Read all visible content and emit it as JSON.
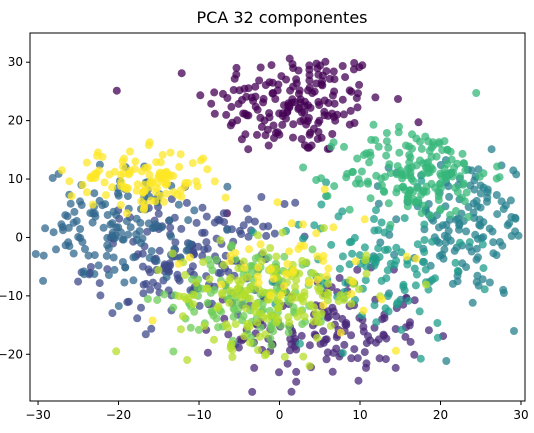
{
  "chart_data": {
    "type": "scatter",
    "title": "PCA 32 componentes",
    "xlabel": "",
    "ylabel": "",
    "xlim": [
      -31,
      30.5
    ],
    "ylim": [
      -28,
      35
    ],
    "xticks": [
      -30,
      -20,
      -10,
      0,
      10,
      20,
      30
    ],
    "yticks": [
      -20,
      -10,
      0,
      10,
      20,
      30
    ],
    "grid": false,
    "legend": "none",
    "colormap": "viridis",
    "marker_alpha": 0.75,
    "clusters": [
      {
        "color": "#440154",
        "center": [
          2,
          23
        ],
        "spread": [
          5.5,
          4.5
        ],
        "count": 180
      },
      {
        "color": "#482878",
        "center": [
          6,
          -16
        ],
        "spread": [
          6,
          4.5
        ],
        "count": 140
      },
      {
        "color": "#3e4a89",
        "center": [
          -11,
          -4
        ],
        "spread": [
          6,
          5
        ],
        "count": 170
      },
      {
        "color": "#31688e",
        "center": [
          -20,
          2
        ],
        "spread": [
          4.5,
          5
        ],
        "count": 130
      },
      {
        "color": "#26828e",
        "center": [
          23,
          2
        ],
        "spread": [
          4.5,
          6
        ],
        "count": 150
      },
      {
        "color": "#1f9e89",
        "center": [
          12,
          -5
        ],
        "spread": [
          6,
          6
        ],
        "count": 110
      },
      {
        "color": "#35b779",
        "center": [
          17,
          11
        ],
        "spread": [
          4.5,
          4
        ],
        "count": 170
      },
      {
        "color": "#6ece58",
        "center": [
          -3,
          -10
        ],
        "spread": [
          5,
          4
        ],
        "count": 140
      },
      {
        "color": "#b5de2b",
        "center": [
          -1,
          -10
        ],
        "spread": [
          6,
          4.5
        ],
        "count": 160
      },
      {
        "color": "#fde725",
        "center": [
          -17,
          10
        ],
        "spread": [
          4.5,
          2.5
        ],
        "count": 110
      },
      {
        "color": "#fde725",
        "center": [
          2,
          -5
        ],
        "spread": [
          6,
          5
        ],
        "count": 50
      }
    ]
  }
}
